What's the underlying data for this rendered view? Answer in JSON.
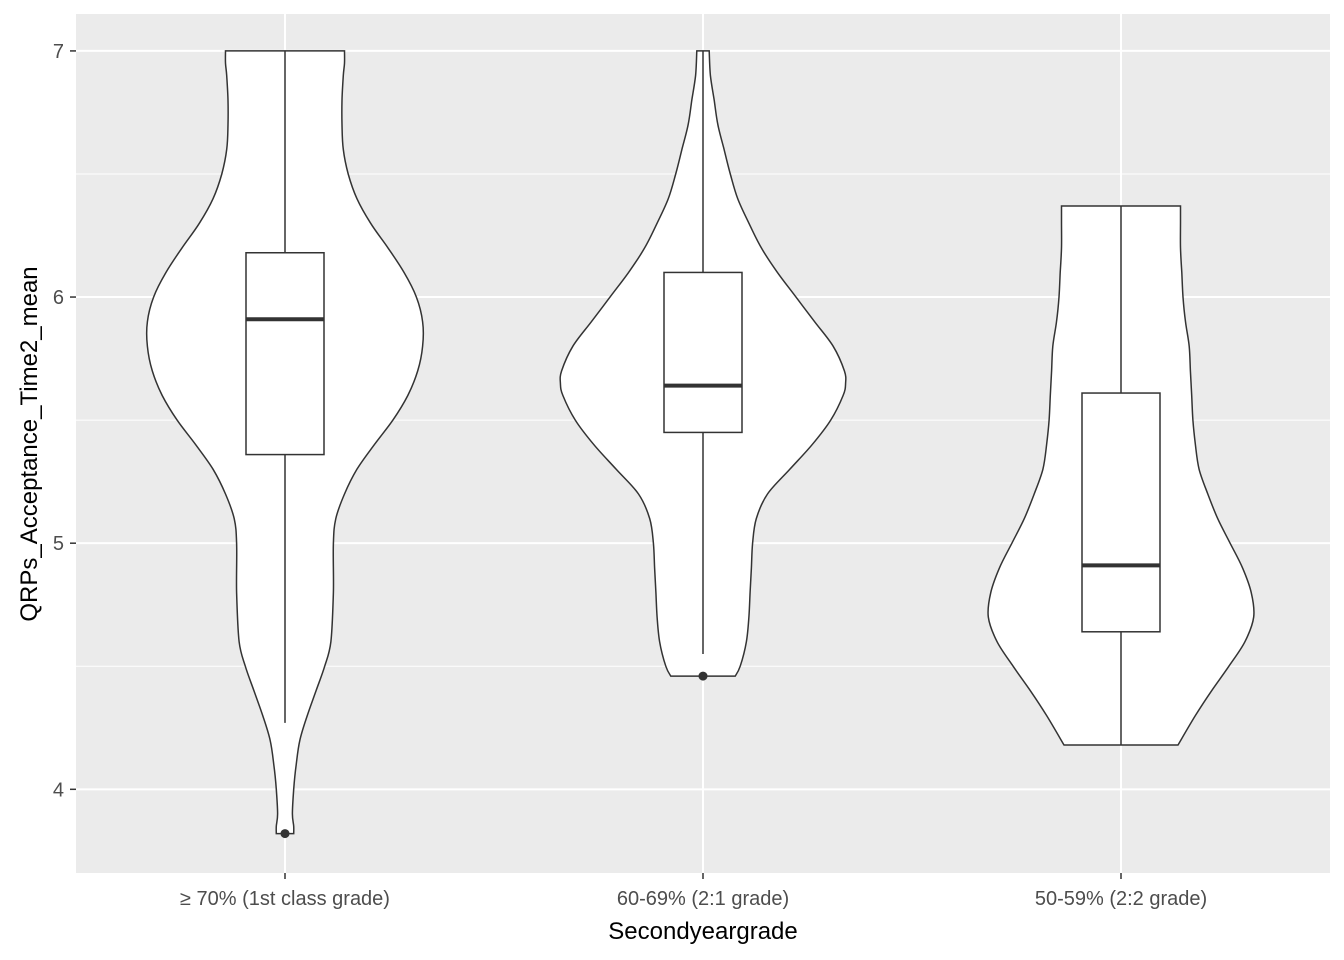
{
  "chart_data": {
    "type": "violin",
    "xlabel": "Secondyeargrade",
    "ylabel": "QRPs_Acceptance_Time2_mean",
    "ylim": [
      3.66,
      7.15
    ],
    "yticks": [
      4,
      5,
      6,
      7
    ],
    "grid": true,
    "categories": [
      "≥ 70% (1st class grade)",
      "60-69% (2:1 grade)",
      "50-59% (2:2 grade)"
    ],
    "groups": [
      {
        "category": "≥ 70% (1st class grade)",
        "min": 3.82,
        "max": 7.0,
        "q1": 5.36,
        "median": 5.91,
        "q3": 6.18,
        "whisker_low": 4.27,
        "whisker_high": 7.0,
        "outliers": [
          3.82
        ],
        "density": [
          [
            3.82,
            0.07
          ],
          [
            3.85,
            0.07
          ],
          [
            3.9,
            0.06
          ],
          [
            4.0,
            0.07
          ],
          [
            4.1,
            0.09
          ],
          [
            4.2,
            0.12
          ],
          [
            4.3,
            0.18
          ],
          [
            4.4,
            0.25
          ],
          [
            4.5,
            0.32
          ],
          [
            4.6,
            0.37
          ],
          [
            4.8,
            0.39
          ],
          [
            5.0,
            0.39
          ],
          [
            5.1,
            0.41
          ],
          [
            5.2,
            0.48
          ],
          [
            5.3,
            0.58
          ],
          [
            5.4,
            0.72
          ],
          [
            5.5,
            0.87
          ],
          [
            5.6,
            0.99
          ],
          [
            5.7,
            1.07
          ],
          [
            5.8,
            1.11
          ],
          [
            5.9,
            1.11
          ],
          [
            6.0,
            1.06
          ],
          [
            6.1,
            0.96
          ],
          [
            6.2,
            0.83
          ],
          [
            6.3,
            0.69
          ],
          [
            6.4,
            0.58
          ],
          [
            6.5,
            0.51
          ],
          [
            6.6,
            0.47
          ],
          [
            6.7,
            0.46
          ],
          [
            6.8,
            0.46
          ],
          [
            6.9,
            0.47
          ],
          [
            6.95,
            0.48
          ],
          [
            7.0,
            0.48
          ]
        ]
      },
      {
        "category": "60-69% (2:1 grade)",
        "min": 4.46,
        "max": 7.0,
        "q1": 5.45,
        "median": 5.64,
        "q3": 6.1,
        "whisker_low": 4.55,
        "whisker_high": 7.0,
        "outliers": [
          4.46
        ],
        "density": [
          [
            4.46,
            0.26
          ],
          [
            4.5,
            0.3
          ],
          [
            4.6,
            0.35
          ],
          [
            4.7,
            0.37
          ],
          [
            4.8,
            0.38
          ],
          [
            4.9,
            0.39
          ],
          [
            5.0,
            0.4
          ],
          [
            5.1,
            0.43
          ],
          [
            5.2,
            0.52
          ],
          [
            5.3,
            0.7
          ],
          [
            5.4,
            0.88
          ],
          [
            5.5,
            1.03
          ],
          [
            5.6,
            1.13
          ],
          [
            5.65,
            1.15
          ],
          [
            5.7,
            1.14
          ],
          [
            5.8,
            1.05
          ],
          [
            5.9,
            0.9
          ],
          [
            6.0,
            0.75
          ],
          [
            6.1,
            0.6
          ],
          [
            6.2,
            0.47
          ],
          [
            6.3,
            0.37
          ],
          [
            6.4,
            0.28
          ],
          [
            6.5,
            0.22
          ],
          [
            6.6,
            0.17
          ],
          [
            6.7,
            0.12
          ],
          [
            6.8,
            0.09
          ],
          [
            6.9,
            0.06
          ],
          [
            7.0,
            0.05
          ]
        ]
      },
      {
        "category": "50-59% (2:2 grade)",
        "min": 4.18,
        "max": 6.37,
        "q1": 4.64,
        "median": 4.91,
        "q3": 5.61,
        "whisker_low": 4.18,
        "whisker_high": 6.37,
        "outliers": [],
        "density": [
          [
            4.18,
            0.46
          ],
          [
            4.3,
            0.6
          ],
          [
            4.4,
            0.73
          ],
          [
            4.5,
            0.87
          ],
          [
            4.6,
            1.0
          ],
          [
            4.7,
            1.07
          ],
          [
            4.8,
            1.05
          ],
          [
            4.9,
            0.98
          ],
          [
            5.0,
            0.88
          ],
          [
            5.1,
            0.78
          ],
          [
            5.2,
            0.7
          ],
          [
            5.3,
            0.63
          ],
          [
            5.4,
            0.6
          ],
          [
            5.5,
            0.58
          ],
          [
            5.6,
            0.57
          ],
          [
            5.7,
            0.56
          ],
          [
            5.8,
            0.55
          ],
          [
            5.9,
            0.52
          ],
          [
            6.0,
            0.5
          ],
          [
            6.1,
            0.49
          ],
          [
            6.2,
            0.48
          ],
          [
            6.3,
            0.48
          ],
          [
            6.37,
            0.48
          ]
        ]
      }
    ]
  }
}
